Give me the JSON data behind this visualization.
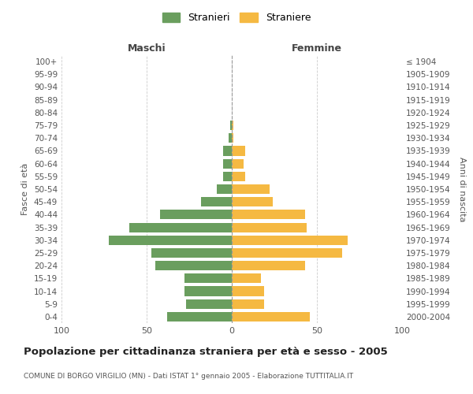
{
  "age_groups": [
    "0-4",
    "5-9",
    "10-14",
    "15-19",
    "20-24",
    "25-29",
    "30-34",
    "35-39",
    "40-44",
    "45-49",
    "50-54",
    "55-59",
    "60-64",
    "65-69",
    "70-74",
    "75-79",
    "80-84",
    "85-89",
    "90-94",
    "95-99",
    "100+"
  ],
  "birth_years": [
    "2000-2004",
    "1995-1999",
    "1990-1994",
    "1985-1989",
    "1980-1984",
    "1975-1979",
    "1970-1974",
    "1965-1969",
    "1960-1964",
    "1955-1959",
    "1950-1954",
    "1945-1949",
    "1940-1944",
    "1935-1939",
    "1930-1934",
    "1925-1929",
    "1920-1924",
    "1915-1919",
    "1910-1914",
    "1905-1909",
    "≤ 1904"
  ],
  "maschi": [
    38,
    27,
    28,
    28,
    45,
    47,
    72,
    60,
    42,
    18,
    9,
    5,
    5,
    5,
    2,
    1,
    0,
    0,
    0,
    0,
    0
  ],
  "femmine": [
    46,
    19,
    19,
    17,
    43,
    65,
    68,
    44,
    43,
    24,
    22,
    8,
    7,
    8,
    1,
    1,
    0,
    0,
    0,
    0,
    0
  ],
  "color_maschi": "#6a9e5e",
  "color_femmine": "#f5b942",
  "title": "Popolazione per cittadinanza straniera per età e sesso - 2005",
  "subtitle": "COMUNE DI BORGO VIRGILIO (MN) - Dati ISTAT 1° gennaio 2005 - Elaborazione TUTTITALIA.IT",
  "xlabel_left": "Maschi",
  "xlabel_right": "Femmine",
  "ylabel_left": "Fasce di età",
  "ylabel_right": "Anni di nascita",
  "legend_maschi": "Stranieri",
  "legend_femmine": "Straniere",
  "xlim": 100,
  "background_color": "#ffffff",
  "grid_color": "#cccccc"
}
